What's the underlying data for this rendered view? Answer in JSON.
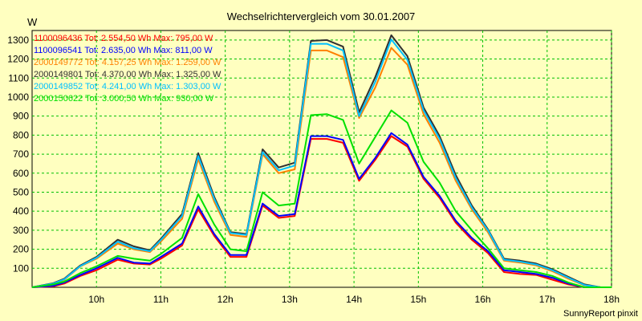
{
  "chart_data": {
    "type": "line",
    "title": "Wechselrichtervergleich vom 30.01.2007",
    "ylabel": "W",
    "credit": "SunnyReport pinxit",
    "background": "#ffffc0",
    "grid": true,
    "grid_color": "#00c000",
    "legend_placement": "top-left",
    "xlim": [
      9.0,
      18.0
    ],
    "ylim": [
      0,
      1350
    ],
    "x_ticks": [
      {
        "value": 10,
        "label": "10h"
      },
      {
        "value": 11,
        "label": "11h"
      },
      {
        "value": 12,
        "label": "12h"
      },
      {
        "value": 13,
        "label": "13h"
      },
      {
        "value": 14,
        "label": "14h"
      },
      {
        "value": 15,
        "label": "15h"
      },
      {
        "value": 16,
        "label": "16h"
      },
      {
        "value": 17,
        "label": "17h"
      },
      {
        "value": 18,
        "label": "18h"
      }
    ],
    "y_ticks": [
      100,
      200,
      300,
      400,
      500,
      600,
      700,
      800,
      900,
      1000,
      1100,
      1200,
      1300
    ],
    "x": [
      9.0,
      9.33,
      9.5,
      9.75,
      10.0,
      10.33,
      10.58,
      10.83,
      11.0,
      11.33,
      11.58,
      11.83,
      12.08,
      12.33,
      12.58,
      12.83,
      13.08,
      13.33,
      13.58,
      13.83,
      14.08,
      14.33,
      14.58,
      14.83,
      15.08,
      15.33,
      15.58,
      15.83,
      16.08,
      16.33,
      16.58,
      16.83,
      17.08,
      17.33,
      17.58,
      17.83,
      18.0
    ],
    "series": [
      {
        "name": "1100096436 Tot: 2.554,50 Wh Max: 795,00 W",
        "color": "#ff0000",
        "values": [
          0,
          5,
          20,
          60,
          90,
          145,
          125,
          120,
          150,
          220,
          410,
          270,
          160,
          160,
          430,
          365,
          375,
          780,
          780,
          760,
          560,
          670,
          795,
          740,
          570,
          470,
          340,
          250,
          180,
          80,
          70,
          65,
          40,
          15,
          0,
          0,
          0
        ]
      },
      {
        "name": "1100096541 Tot: 2.635,00 Wh Max: 811,00 W",
        "color": "#0000ff",
        "values": [
          0,
          8,
          25,
          65,
          100,
          155,
          130,
          125,
          160,
          230,
          425,
          280,
          170,
          170,
          440,
          375,
          385,
          795,
          795,
          775,
          570,
          680,
          811,
          750,
          580,
          480,
          350,
          260,
          190,
          90,
          80,
          70,
          50,
          20,
          0,
          0,
          0
        ]
      },
      {
        "name": "2000149772 Tot: 4.157,25 Wh Max: 1.259,00 W",
        "color": "#ff8000",
        "values": [
          0,
          20,
          40,
          110,
          150,
          230,
          200,
          185,
          240,
          360,
          675,
          450,
          275,
          265,
          700,
          600,
          620,
          1245,
          1245,
          1210,
          890,
          1050,
          1259,
          1170,
          910,
          760,
          560,
          410,
          290,
          140,
          130,
          115,
          85,
          45,
          10,
          0,
          0
        ]
      },
      {
        "name": "2000149801 Tot: 4.370,00 Wh Max: 1.325,00 W",
        "color": "#303030",
        "values": [
          0,
          22,
          45,
          115,
          160,
          250,
          215,
          195,
          255,
          385,
          705,
          475,
          290,
          280,
          725,
          630,
          655,
          1295,
          1300,
          1265,
          920,
          1105,
          1325,
          1215,
          945,
          795,
          590,
          430,
          305,
          150,
          140,
          125,
          95,
          55,
          15,
          0,
          0
        ]
      },
      {
        "name": "2000149852 Tot: 4.241,00 Wh Max: 1.303,00 W",
        "color": "#00c0ff",
        "values": [
          0,
          20,
          42,
          112,
          155,
          240,
          205,
          190,
          248,
          375,
          690,
          465,
          285,
          275,
          710,
          615,
          640,
          1280,
          1280,
          1245,
          900,
          1080,
          1303,
          1195,
          930,
          780,
          575,
          420,
          300,
          145,
          135,
          120,
          90,
          50,
          12,
          0,
          0
        ]
      },
      {
        "name": "2000150622 Tot: 3.000,50 Wh Max: 930,00 W",
        "color": "#00e000",
        "values": [
          0,
          15,
          30,
          75,
          110,
          165,
          150,
          140,
          175,
          260,
          490,
          330,
          200,
          190,
          500,
          430,
          440,
          905,
          910,
          880,
          650,
          790,
          930,
          865,
          660,
          550,
          400,
          300,
          205,
          100,
          90,
          80,
          60,
          25,
          0,
          0,
          0
        ]
      }
    ]
  }
}
